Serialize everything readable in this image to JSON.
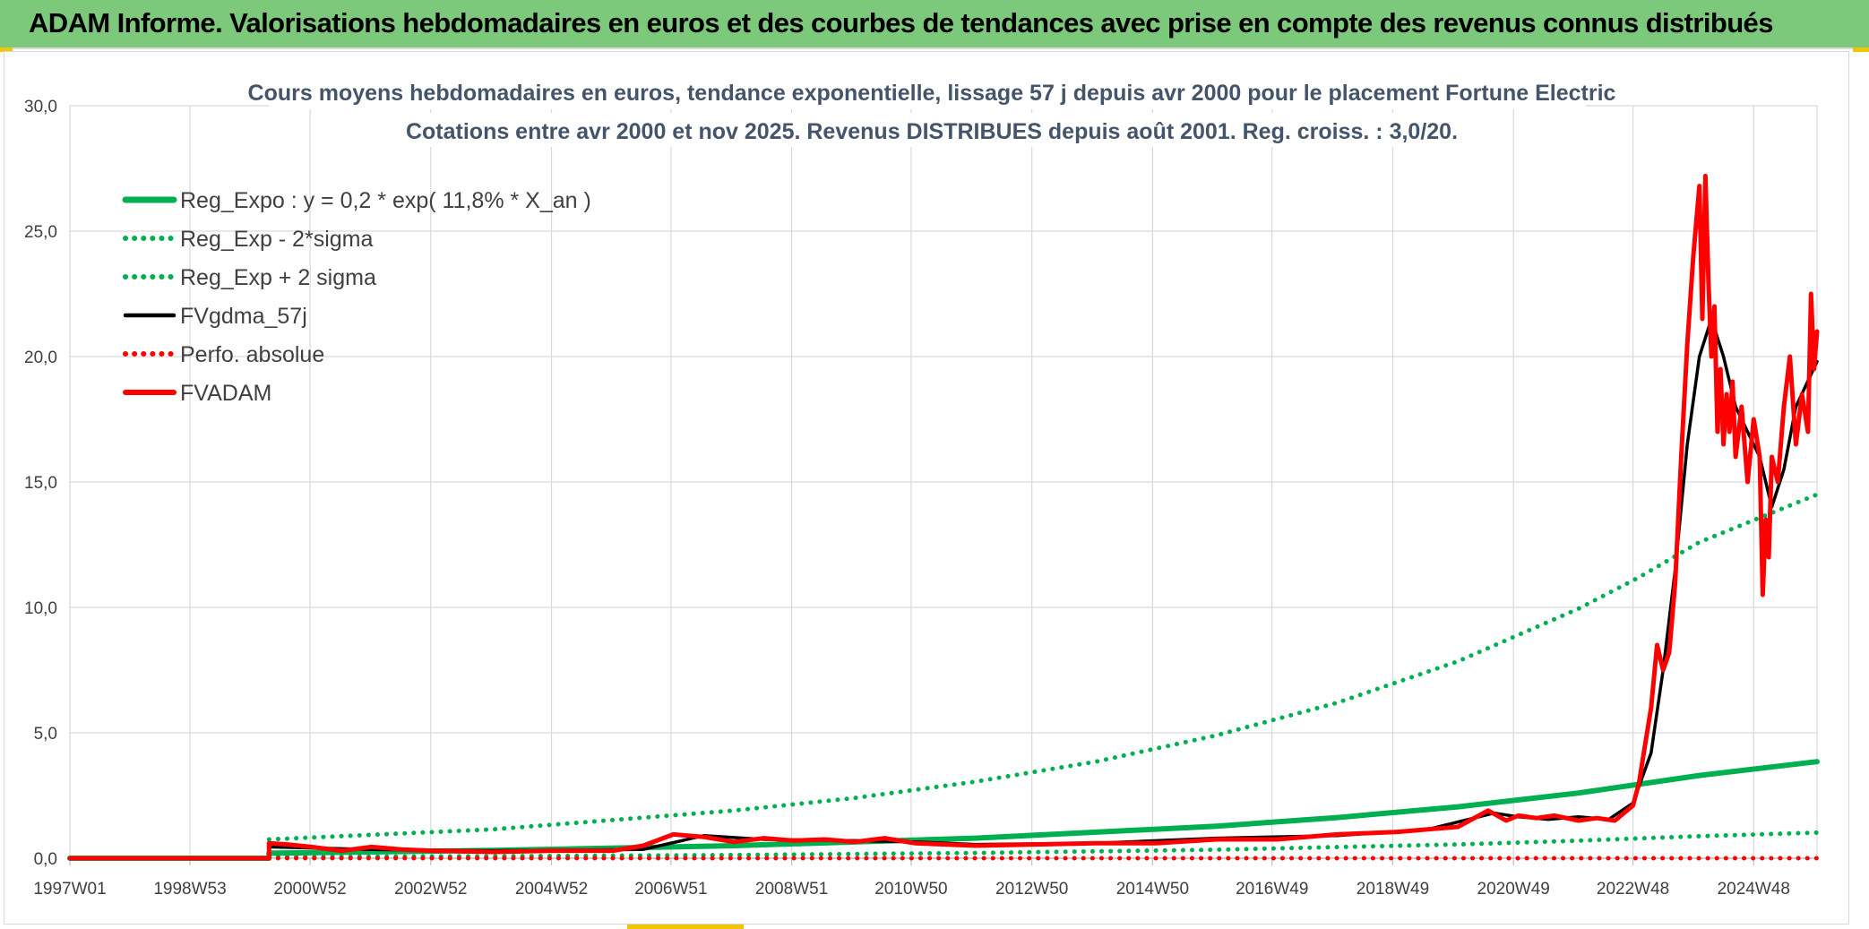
{
  "header": {
    "title": "ADAM Informe. Valorisations hebdomadaires en euros et des courbes de tendances avec prise en compte des revenus connus distribués"
  },
  "colors": {
    "banner": "#7dc97b",
    "reg_expo": "#00b050",
    "fvgdma": "#000000",
    "fvadam": "#ff0000",
    "perfo": "#ff0000",
    "corner_accent": "#f2c500"
  },
  "chart_data": {
    "type": "line",
    "title": "Cours moyens hebdomadaires en euros, tendance exponentielle, lissage 57 j depuis avr 2000 pour le placement Fortune Electric",
    "subtitle": "Cotations entre avr 2000 et nov 2025. Revenus DISTRIBUES depuis août 2001. Reg. croiss. : 3,0/20.",
    "xlabel": "",
    "ylabel": "",
    "ylim": [
      0,
      30
    ],
    "xlim": [
      1997.0,
      2025.95
    ],
    "yticks": [
      "0,0",
      "5,0",
      "10,0",
      "15,0",
      "20,0",
      "25,0",
      "30,0"
    ],
    "xticks": [
      {
        "label": "1997W01",
        "x": 1997.0
      },
      {
        "label": "1998W53",
        "x": 1998.99
      },
      {
        "label": "2000W52",
        "x": 2000.98
      },
      {
        "label": "2002W52",
        "x": 2002.98
      },
      {
        "label": "2004W52",
        "x": 2004.98
      },
      {
        "label": "2006W51",
        "x": 2006.96
      },
      {
        "label": "2008W51",
        "x": 2008.96
      },
      {
        "label": "2010W50",
        "x": 2010.94
      },
      {
        "label": "2012W50",
        "x": 2012.94
      },
      {
        "label": "2014W50",
        "x": 2014.94
      },
      {
        "label": "2016W49",
        "x": 2016.92
      },
      {
        "label": "2018W49",
        "x": 2018.92
      },
      {
        "label": "2020W49",
        "x": 2020.92
      },
      {
        "label": "2022W48",
        "x": 2022.9
      },
      {
        "label": "2024W48",
        "x": 2024.9
      }
    ],
    "grid": true,
    "legend_position": "top-left",
    "series": [
      {
        "name": "Reg_Expo : y = 0,2 * exp( 11,8% *  X_an )",
        "style": "solid-thick",
        "color": "#00b050",
        "x": [
          1997.0,
          2000.3,
          2000.3,
          2004.0,
          2008.0,
          2012.0,
          2016.0,
          2018.0,
          2020.0,
          2022.0,
          2024.0,
          2025.95
        ],
        "y": [
          0.0,
          0.0,
          0.2,
          0.31,
          0.5,
          0.8,
          1.28,
          1.62,
          2.05,
          2.6,
          3.3,
          3.85
        ]
      },
      {
        "name": "Reg_Exp - 2*sigma",
        "style": "dotted",
        "color": "#00b050",
        "x": [
          2000.3,
          2004.0,
          2008.0,
          2012.0,
          2016.0,
          2020.0,
          2022.0,
          2024.0,
          2025.95
        ],
        "y": [
          0.05,
          0.08,
          0.13,
          0.21,
          0.34,
          0.55,
          0.7,
          0.88,
          1.02
        ]
      },
      {
        "name": "Reg_Exp + 2 sigma",
        "style": "dotted",
        "color": "#00b050",
        "x": [
          2000.3,
          2004.0,
          2008.0,
          2010.0,
          2012.0,
          2014.0,
          2016.0,
          2018.0,
          2020.0,
          2022.0,
          2023.0,
          2024.0,
          2025.95
        ],
        "y": [
          0.75,
          1.15,
          1.9,
          2.4,
          3.05,
          3.85,
          4.9,
          6.2,
          7.85,
          9.95,
          11.2,
          12.6,
          14.5
        ]
      },
      {
        "name": "FVgdma_57j",
        "style": "solid",
        "color": "#000000",
        "x": [
          2000.3,
          2002.0,
          2004.0,
          2006.5,
          2007.5,
          2008.5,
          2010.0,
          2011.0,
          2012.0,
          2014.0,
          2016.0,
          2018.0,
          2019.5,
          2020.6,
          2021.0,
          2021.5,
          2022.0,
          2022.5,
          2022.9,
          2023.2,
          2023.4,
          2023.6,
          2023.8,
          2024.0,
          2024.2,
          2024.4,
          2024.6,
          2024.8,
          2025.0,
          2025.2,
          2025.4,
          2025.6,
          2025.95
        ],
        "y": [
          0.45,
          0.35,
          0.3,
          0.35,
          0.9,
          0.75,
          0.7,
          0.65,
          0.55,
          0.6,
          0.8,
          0.9,
          1.15,
          1.8,
          1.65,
          1.55,
          1.65,
          1.55,
          2.2,
          4.2,
          7.5,
          11.5,
          16.5,
          20.0,
          21.5,
          20.0,
          18.0,
          17.0,
          16.0,
          14.0,
          15.5,
          18.0,
          19.8
        ]
      },
      {
        "name": "Perfo. absolue",
        "style": "dotted",
        "color": "#ff0000",
        "x": [
          1997.0,
          2025.95
        ],
        "y": [
          0.0,
          0.0
        ]
      },
      {
        "name": "FVADAM",
        "style": "solid-thick",
        "color": "#ff0000",
        "x": [
          1997.0,
          2000.3,
          2000.3,
          2000.6,
          2001.0,
          2001.5,
          2002.0,
          2002.5,
          2003.0,
          2004.0,
          2005.0,
          2006.0,
          2006.5,
          2007.0,
          2007.5,
          2008.0,
          2008.5,
          2009.0,
          2009.5,
          2010.0,
          2010.5,
          2011.0,
          2011.5,
          2012.0,
          2013.0,
          2014.0,
          2015.0,
          2016.0,
          2017.0,
          2018.0,
          2019.0,
          2019.5,
          2020.0,
          2020.5,
          2020.8,
          2021.0,
          2021.3,
          2021.6,
          2022.0,
          2022.3,
          2022.6,
          2022.9,
          2023.0,
          2023.1,
          2023.2,
          2023.3,
          2023.4,
          2023.5,
          2023.6,
          2023.7,
          2023.8,
          2023.9,
          2024.0,
          2024.05,
          2024.1,
          2024.15,
          2024.2,
          2024.25,
          2024.3,
          2024.35,
          2024.4,
          2024.45,
          2024.5,
          2024.55,
          2024.6,
          2024.7,
          2024.8,
          2024.9,
          2025.0,
          2025.05,
          2025.1,
          2025.15,
          2025.2,
          2025.3,
          2025.4,
          2025.5,
          2025.6,
          2025.7,
          2025.8,
          2025.85,
          2025.9,
          2025.95
        ],
        "y": [
          0.0,
          0.0,
          0.6,
          0.55,
          0.45,
          0.3,
          0.45,
          0.35,
          0.3,
          0.25,
          0.3,
          0.3,
          0.5,
          0.95,
          0.85,
          0.65,
          0.8,
          0.7,
          0.75,
          0.65,
          0.8,
          0.6,
          0.55,
          0.5,
          0.55,
          0.6,
          0.6,
          0.75,
          0.75,
          0.95,
          1.05,
          1.15,
          1.25,
          1.9,
          1.5,
          1.7,
          1.6,
          1.7,
          1.5,
          1.6,
          1.5,
          2.1,
          3.0,
          4.5,
          6.0,
          8.5,
          7.5,
          8.2,
          11.0,
          16.0,
          20.5,
          24.0,
          26.8,
          21.5,
          27.2,
          23.0,
          20.0,
          22.0,
          17.0,
          19.5,
          16.5,
          18.5,
          17.0,
          19.0,
          16.0,
          18.0,
          15.0,
          17.5,
          16.0,
          10.5,
          13.5,
          12.0,
          16.0,
          15.0,
          18.0,
          20.0,
          16.5,
          18.5,
          17.0,
          22.5,
          19.5,
          21.0
        ]
      }
    ]
  }
}
